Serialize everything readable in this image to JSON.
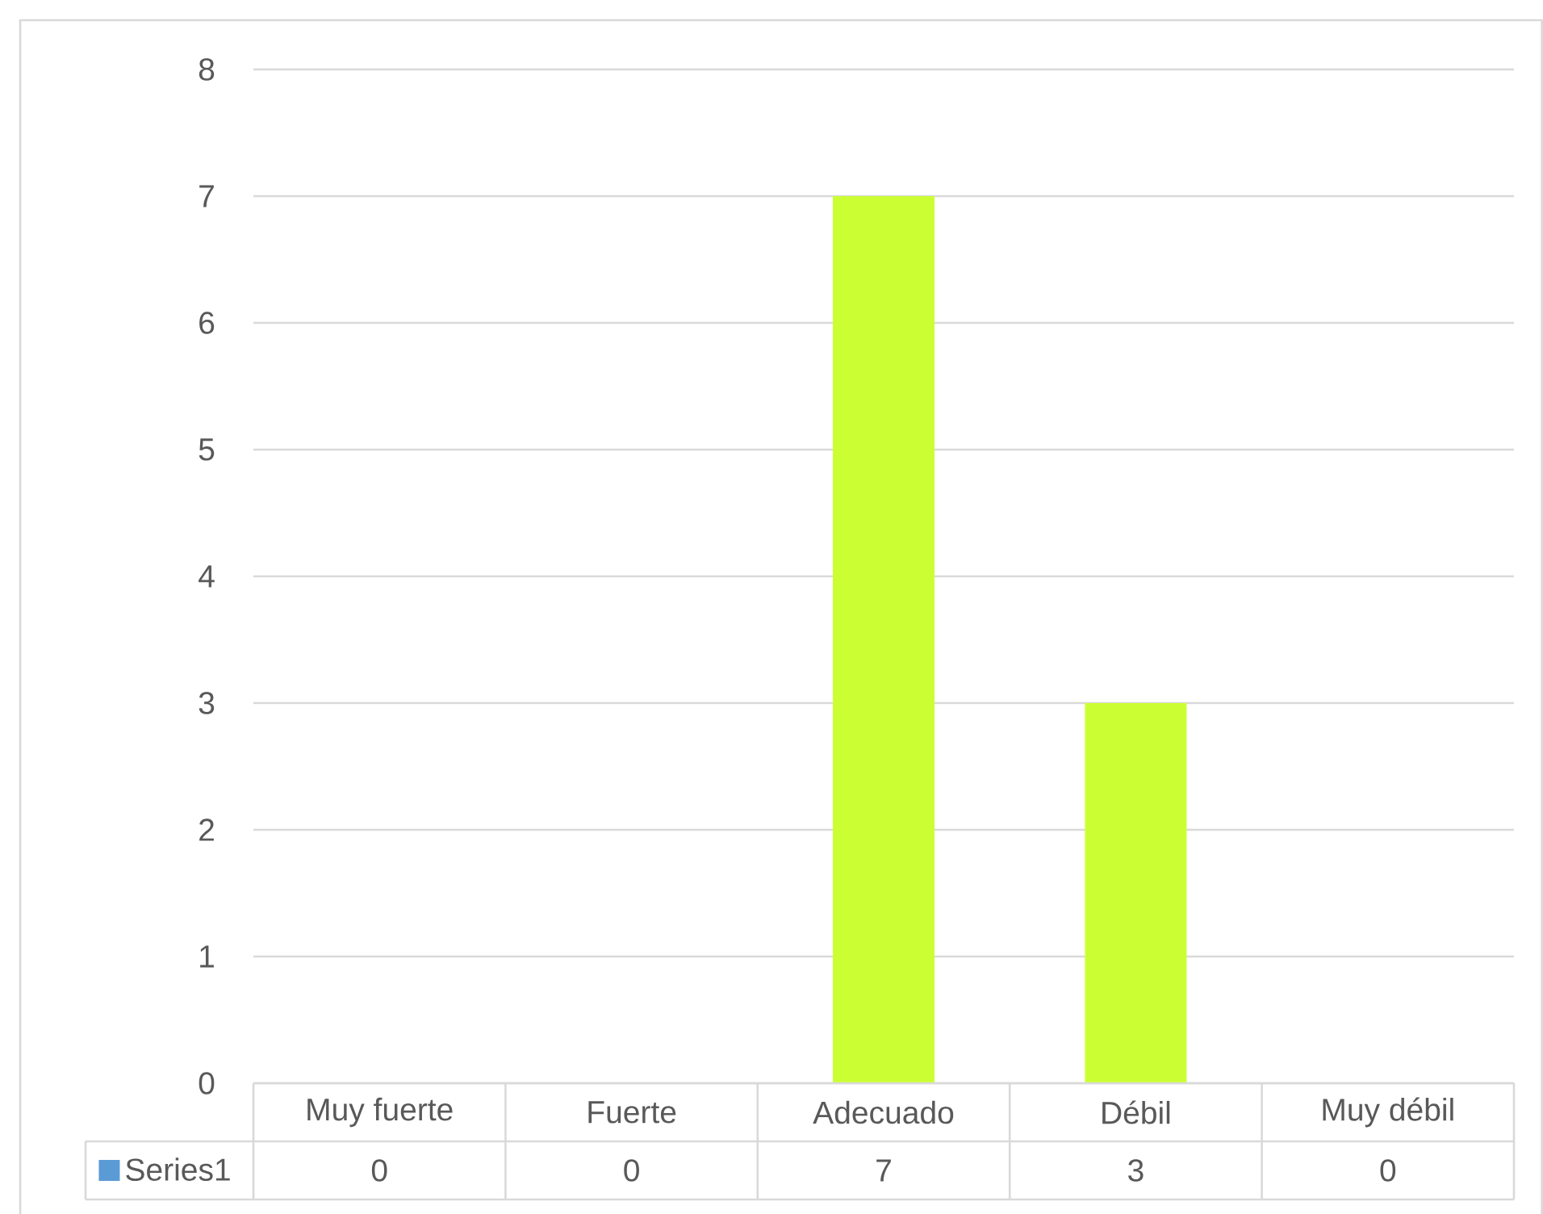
{
  "chart_data": {
    "type": "bar",
    "categories": [
      "Muy fuerte",
      "Fuerte",
      "Adecuado",
      "Débil",
      "Muy débil"
    ],
    "series": [
      {
        "name": "Series1",
        "color": "#5b9bd5",
        "colors": [
          "#ccff33",
          "#ccff33",
          "#ccff33",
          "#ccff33",
          "#ccff33"
        ],
        "values": [
          0,
          0,
          7,
          3,
          0
        ]
      }
    ],
    "ylim": [
      0,
      8
    ],
    "yticks": [
      0,
      1,
      2,
      3,
      4,
      5,
      6,
      7,
      8
    ],
    "grid": "y",
    "legend": "bottom",
    "data_labels": true
  }
}
